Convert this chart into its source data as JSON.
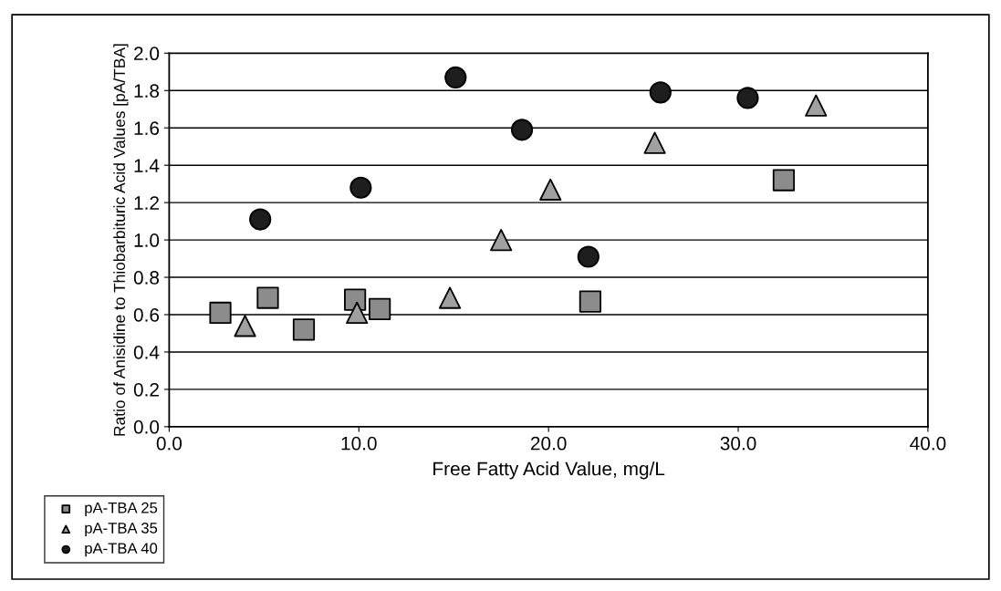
{
  "chart_data": {
    "type": "scatter",
    "xlabel": "Free Fatty Acid Value, mg/L",
    "ylabel": "Ratio of Anisidine to Thiobarbituric Acid Values [pA/TBA]",
    "xlim": [
      0.0,
      40.0
    ],
    "xticks": [
      {
        "value": 0,
        "label": "0.0"
      },
      {
        "value": 10,
        "label": "10.0"
      },
      {
        "value": 20,
        "label": "20.0"
      },
      {
        "value": 30,
        "label": "30.0"
      },
      {
        "value": 40,
        "label": "40.0"
      }
    ],
    "ylim": [
      0.0,
      2.0
    ],
    "yticks": [
      {
        "value": 0,
        "label": "0.0"
      },
      0.2,
      0.4,
      0.6,
      0.8,
      {
        "value": 1,
        "label": "1.0"
      },
      1.2,
      1.4,
      1.6,
      1.8,
      {
        "value": 2,
        "label": "2.0"
      }
    ],
    "grid": "y",
    "legend": "bottom left",
    "series": [
      {
        "name": "pA-TBA 25",
        "color": "#8c8c8c",
        "marker": "square",
        "x": [
          2.7,
          5.2,
          7.1,
          9.8,
          11.1,
          22.2,
          32.4
        ],
        "values": [
          0.61,
          0.69,
          0.52,
          0.68,
          0.63,
          0.67,
          1.32
        ]
      },
      {
        "name": "pA-TBA 35",
        "color": "#a0a0a0",
        "marker": "triangle",
        "x": [
          4.0,
          9.9,
          14.8,
          17.5,
          20.1,
          25.6,
          34.1
        ],
        "values": [
          0.54,
          0.61,
          0.69,
          1.0,
          1.27,
          1.52,
          1.72
        ]
      },
      {
        "name": "pA-TBA 40",
        "color": "#1e1e1e",
        "marker": "circle",
        "x": [
          4.8,
          10.1,
          15.1,
          18.6,
          22.1,
          25.9,
          30.5
        ],
        "values": [
          1.11,
          1.28,
          1.87,
          1.59,
          0.91,
          1.79,
          1.76
        ]
      }
    ]
  }
}
